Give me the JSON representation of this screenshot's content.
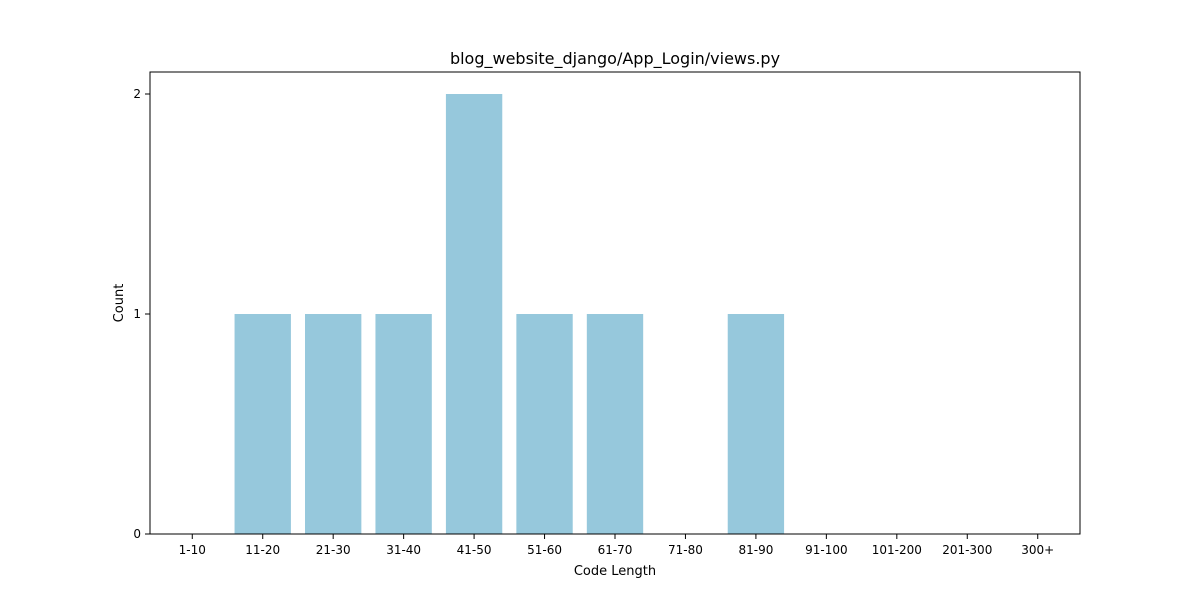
{
  "chart_data": {
    "type": "bar",
    "title": "blog_website_django/App_Login/views.py",
    "xlabel": "Code Length",
    "ylabel": "Count",
    "categories": [
      "1-10",
      "11-20",
      "21-30",
      "31-40",
      "41-50",
      "51-60",
      "61-70",
      "71-80",
      "81-90",
      "91-100",
      "101-200",
      "201-300",
      "300+"
    ],
    "values": [
      0,
      1,
      1,
      1,
      2,
      1,
      1,
      0,
      1,
      0,
      0,
      0,
      0
    ],
    "yticks": [
      0,
      1,
      2
    ],
    "ylim": [
      0,
      2.1
    ],
    "bar_color": "#96c8dc",
    "grid": false,
    "legend": "none"
  }
}
